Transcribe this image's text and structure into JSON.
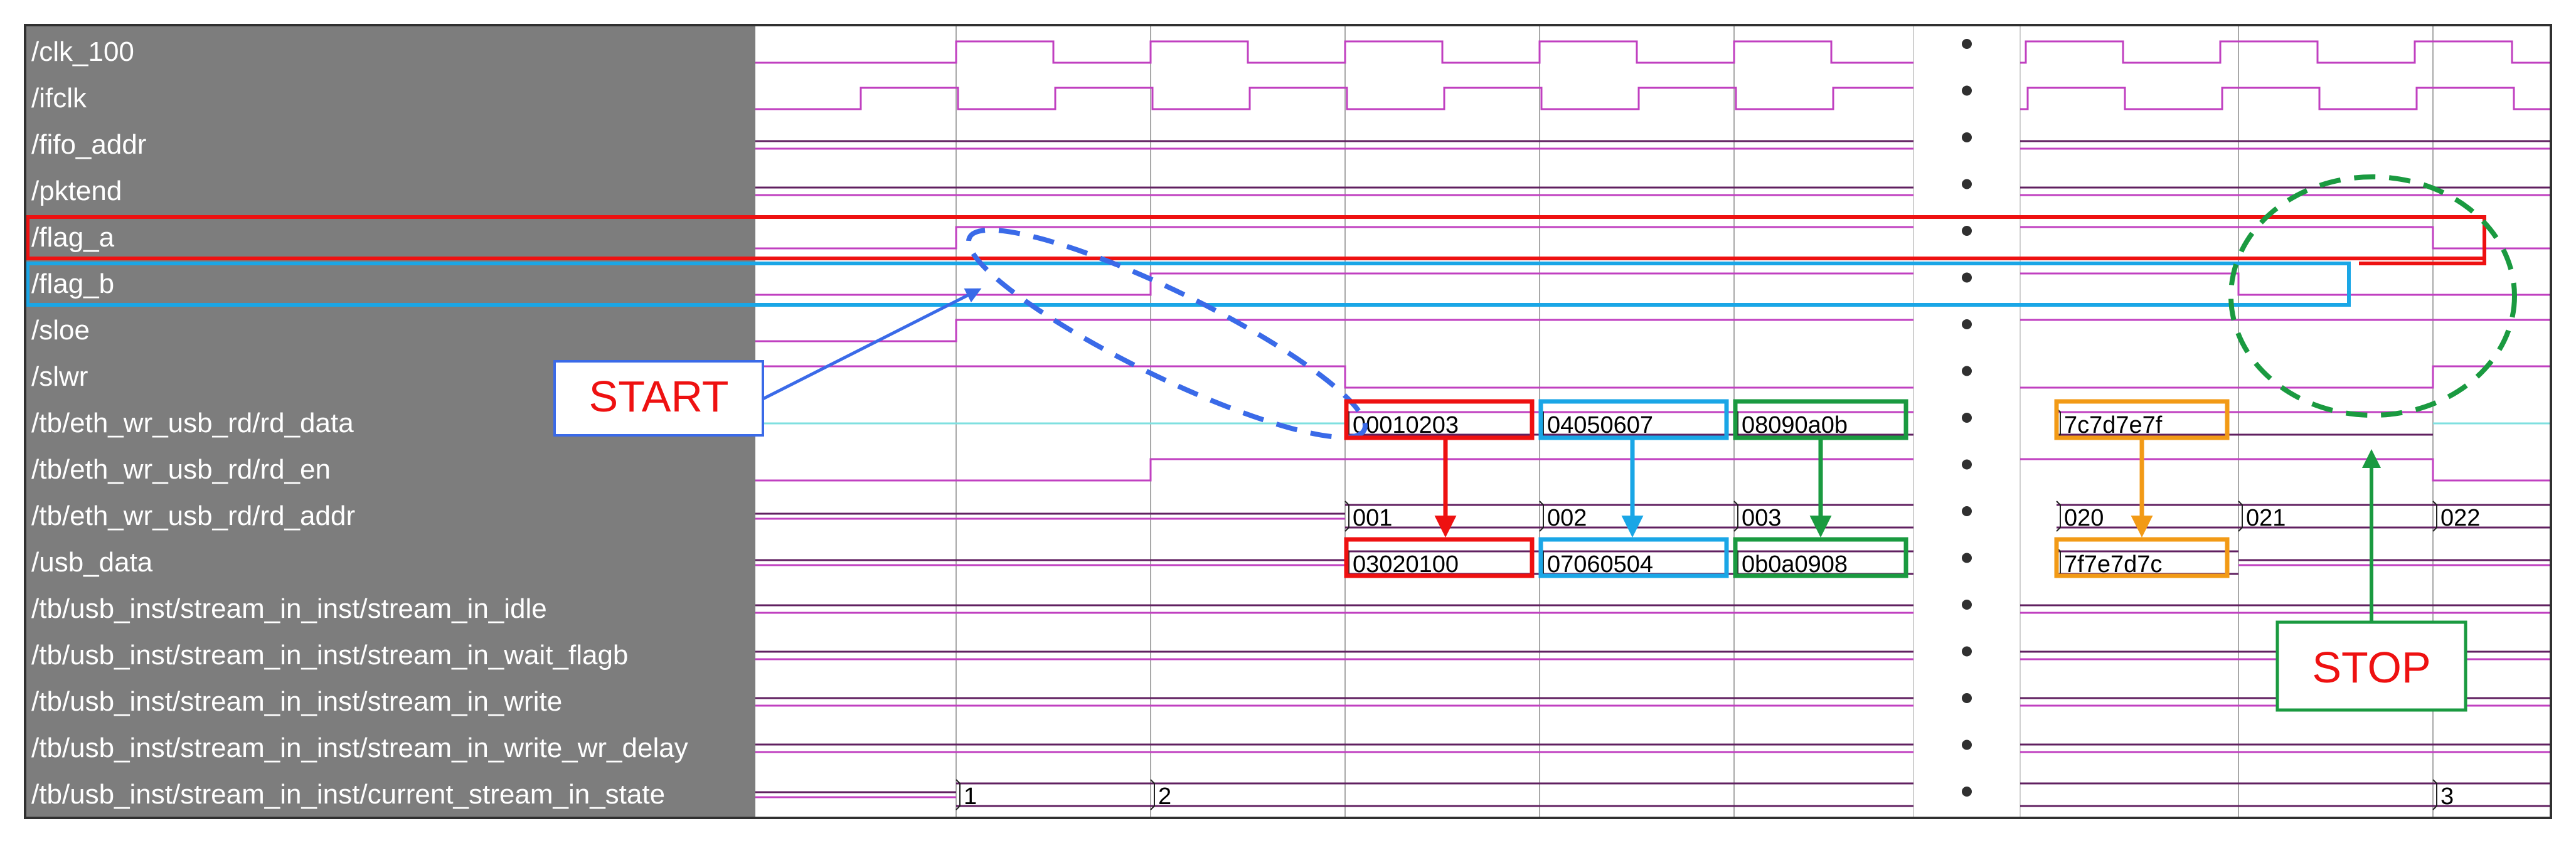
{
  "signals": [
    "/clk_100",
    "/ifclk",
    "/fifo_addr",
    "/pktend",
    "/flag_a",
    "/flag_b",
    "/sloe",
    "/slwr",
    "/tb/eth_wr_usb_rd/rd_data",
    "/tb/eth_wr_usb_rd/rd_en",
    "/tb/eth_wr_usb_rd/rd_addr",
    "/usb_data",
    "/tb/usb_inst/stream_in_inst/stream_in_idle",
    "/tb/usb_inst/stream_in_inst/stream_in_wait_flagb",
    "/tb/usb_inst/stream_in_inst/stream_in_write",
    "/tb/usb_inst/stream_in_inst/stream_in_write_wr_delay",
    "/tb/usb_inst/stream_in_inst/current_stream_in_state"
  ],
  "rd_data_values": [
    "00010203",
    "04050607",
    "08090a0b",
    "7c7d7e7f"
  ],
  "rd_addr_values": [
    "001",
    "002",
    "003",
    "020",
    "021",
    "022"
  ],
  "usb_data_values": [
    "03020100",
    "07060504",
    "0b0a0908",
    "7f7e7d7c"
  ],
  "state_values": [
    "1",
    "2",
    "3"
  ],
  "annotations": {
    "start_label": "START",
    "stop_label": "STOP"
  },
  "colors": {
    "signal_panel_bg": "#7d7d7d",
    "wave_bus": "#c040c0",
    "wave_dark": "#602060",
    "rd_data_line": "#7fe0e0",
    "red": "#ee1111",
    "blue": "#1aa6e6",
    "green": "#1a9a40",
    "orange": "#f29a16",
    "start_blue": "#3a6ae8",
    "cursor_grid": "#a8a8a8"
  },
  "icons": {
    "ellipsis": "vertical-dots-icon",
    "arrow": "arrow-icon"
  }
}
